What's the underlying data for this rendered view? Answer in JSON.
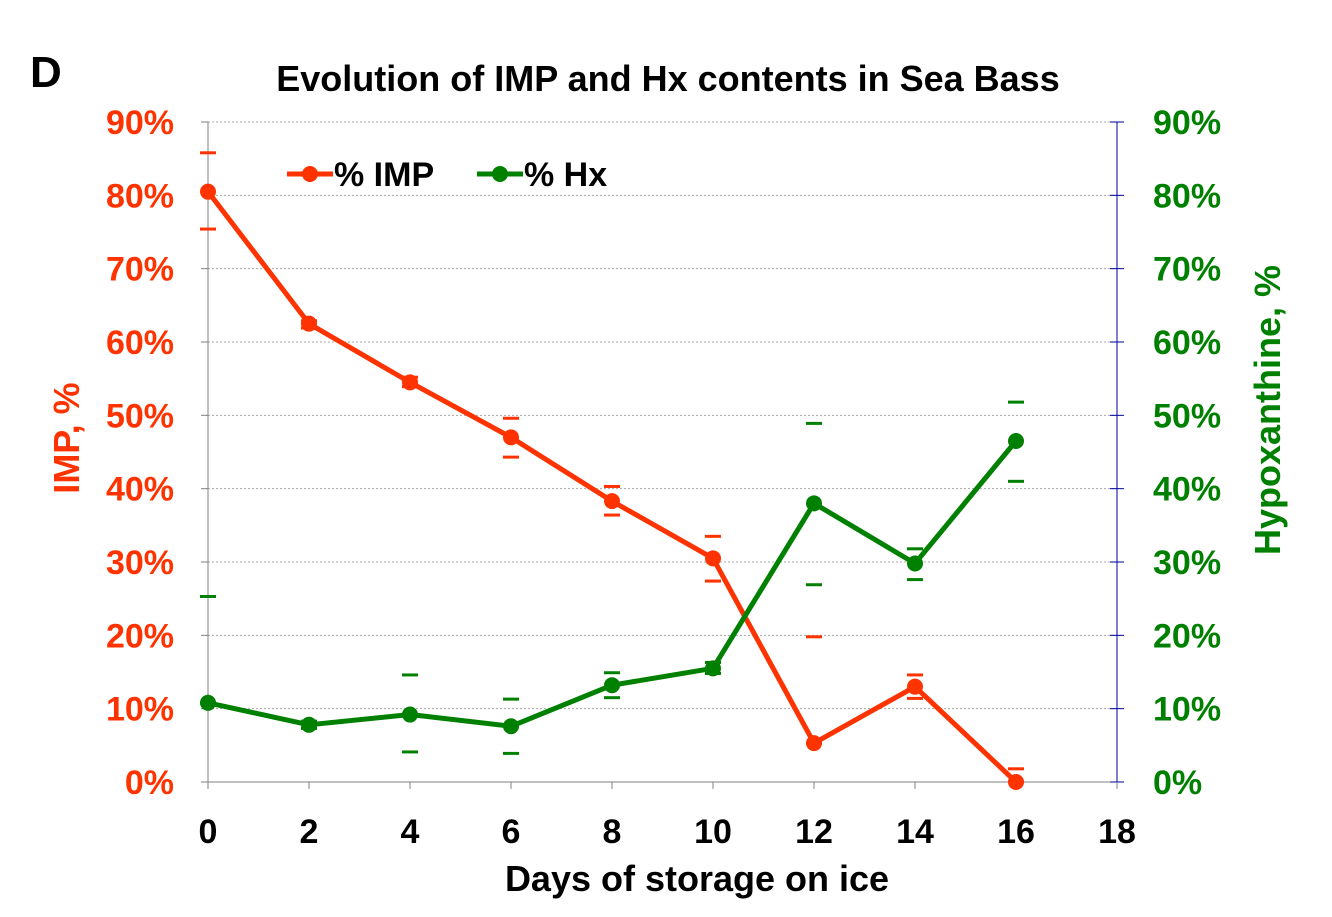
{
  "panel_label": "D",
  "chart_data": {
    "type": "line",
    "title": "Evolution of IMP and Hx contents in Sea Bass",
    "xlabel": "Days of storage on ice",
    "ylabel_left": "IMP, %",
    "ylabel_right": "Hypoxanthine, %",
    "xlim": [
      0,
      18
    ],
    "x_ticks": [
      0,
      2,
      4,
      6,
      8,
      10,
      12,
      14,
      16,
      18
    ],
    "ylim": [
      0,
      90
    ],
    "y_ticks": [
      0,
      10,
      20,
      30,
      40,
      50,
      60,
      70,
      80,
      90
    ],
    "y_tick_labels": [
      "0%",
      "10%",
      "20%",
      "30%",
      "40%",
      "50%",
      "60%",
      "70%",
      "80%",
      "90%"
    ],
    "grid": "horizontal",
    "legend_position": "top-left",
    "series": [
      {
        "name": "% IMP",
        "axis": "left",
        "color": "#ff3300",
        "x": [
          0,
          2,
          4,
          6,
          8,
          10,
          12,
          14,
          16
        ],
        "y": [
          80.5,
          62.5,
          54.5,
          47,
          38.3,
          30.5,
          5.3,
          13,
          0
        ],
        "err_high": [
          85.8,
          62.9,
          55.2,
          49.6,
          40.3,
          33.5,
          19.8,
          14.6,
          1.8
        ],
        "err_low": [
          75.4,
          61.9,
          53.9,
          44.3,
          36.4,
          27.4,
          5.3,
          11.4,
          0
        ]
      },
      {
        "name": "% Hx",
        "axis": "right",
        "color": "#008000",
        "x": [
          0,
          2,
          4,
          6,
          8,
          10,
          12,
          14,
          16
        ],
        "y": [
          10.8,
          7.8,
          9.2,
          7.6,
          13.2,
          15.5,
          38,
          29.8,
          46.5
        ],
        "err_high": [
          25.3,
          8.3,
          14.6,
          11.3,
          14.9,
          16.3,
          48.9,
          31.8,
          51.8
        ],
        "err_low": [
          10.8,
          7.3,
          4.1,
          3.9,
          11.5,
          14.8,
          26.9,
          27.6,
          41
        ]
      }
    ]
  }
}
